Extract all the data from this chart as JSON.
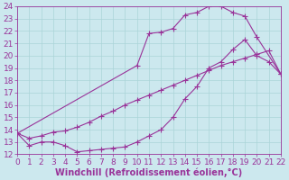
{
  "xlabel": "Windchill (Refroidissement éolien,°C)",
  "bg_color": "#cce8ee",
  "grid_color": "#aad4d8",
  "line_color": "#993399",
  "xlim": [
    0,
    22
  ],
  "ylim": [
    12,
    24
  ],
  "xticks": [
    0,
    1,
    2,
    3,
    4,
    5,
    6,
    7,
    8,
    9,
    10,
    11,
    12,
    13,
    14,
    15,
    16,
    17,
    18,
    19,
    20,
    21,
    22
  ],
  "yticks": [
    12,
    13,
    14,
    15,
    16,
    17,
    18,
    19,
    20,
    21,
    22,
    23,
    24
  ],
  "xlabel_fontsize": 7,
  "tick_fontsize": 6.5,
  "markersize": 2.5,
  "curve_upper_x": [
    0,
    10,
    11,
    12,
    13,
    14,
    15,
    16,
    17,
    18,
    19,
    20,
    22
  ],
  "curve_upper_y": [
    13.7,
    19.2,
    21.8,
    21.9,
    22.2,
    23.3,
    23.5,
    24.0,
    24.0,
    23.5,
    23.2,
    21.5,
    18.5
  ],
  "curve_mid_x": [
    0,
    1,
    2,
    3,
    4,
    5,
    6,
    7,
    8,
    9,
    10,
    11,
    12,
    13,
    14,
    15,
    16,
    17,
    18,
    19,
    20,
    21,
    22
  ],
  "curve_mid_y": [
    13.7,
    13.3,
    13.5,
    13.8,
    13.9,
    14.2,
    14.6,
    15.1,
    15.5,
    16.0,
    16.4,
    16.8,
    17.2,
    17.6,
    18.0,
    18.4,
    18.8,
    19.2,
    19.5,
    19.8,
    20.1,
    20.4,
    18.5
  ],
  "curve_lower_x": [
    0,
    1,
    2,
    3,
    4,
    5,
    6,
    7,
    8,
    9,
    10,
    11,
    12,
    13,
    14,
    15,
    16,
    17,
    18,
    19,
    20,
    21,
    22
  ],
  "curve_lower_y": [
    13.7,
    12.7,
    13.0,
    13.0,
    12.7,
    12.2,
    12.3,
    12.4,
    12.5,
    12.6,
    13.0,
    13.5,
    14.0,
    15.0,
    16.5,
    17.5,
    19.0,
    19.5,
    20.5,
    21.3,
    20.0,
    19.5,
    18.5
  ]
}
